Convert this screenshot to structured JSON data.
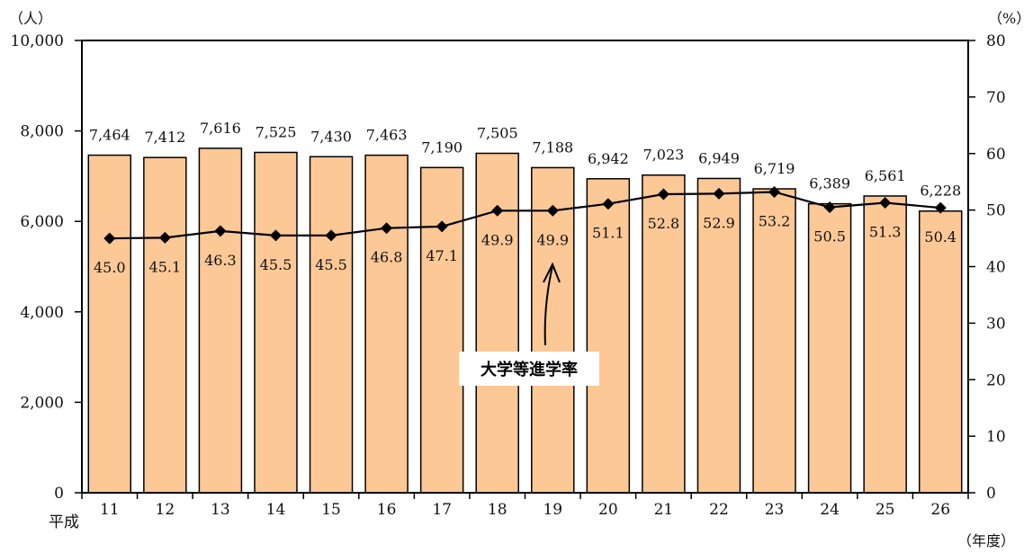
{
  "chart_data": {
    "type": "bar+line",
    "era_prefix": "平成",
    "categories": [
      "11",
      "12",
      "13",
      "14",
      "15",
      "16",
      "17",
      "18",
      "19",
      "20",
      "21",
      "22",
      "23",
      "24",
      "25",
      "26"
    ],
    "series": [
      {
        "type": "bar",
        "axis": "left",
        "values": [
          7464,
          7412,
          7616,
          7525,
          7430,
          7463,
          7190,
          7505,
          7188,
          6942,
          7023,
          6949,
          6719,
          6389,
          6561,
          6228
        ],
        "labels": [
          "7,464",
          "7,412",
          "7,616",
          "7,525",
          "7,430",
          "7,463",
          "7,190",
          "7,505",
          "7,188",
          "6,942",
          "7,023",
          "6,949",
          "6,719",
          "6,389",
          "6,561",
          "6,228"
        ],
        "color": "#FCC896"
      },
      {
        "type": "line",
        "axis": "right",
        "name": "大学等進学率",
        "values": [
          45.0,
          45.1,
          46.3,
          45.5,
          45.5,
          46.8,
          47.1,
          49.9,
          49.9,
          51.1,
          52.8,
          52.9,
          53.2,
          50.5,
          51.3,
          50.4
        ],
        "labels": [
          "45.0",
          "45.1",
          "46.3",
          "45.5",
          "45.5",
          "46.8",
          "47.1",
          "49.9",
          "49.9",
          "51.1",
          "52.8",
          "52.9",
          "53.2",
          "50.5",
          "51.3",
          "50.4"
        ],
        "color": "#000000"
      }
    ],
    "left_axis": {
      "unit": "（人）",
      "range": [
        0,
        10000
      ],
      "ticks": [
        0,
        2000,
        4000,
        6000,
        8000,
        10000
      ],
      "tick_labels": [
        "0",
        "2,000",
        "4,000",
        "6,000",
        "8,000",
        "10,000"
      ]
    },
    "right_axis": {
      "unit": "（%）",
      "range": [
        0,
        80
      ],
      "ticks": [
        0,
        10,
        20,
        30,
        40,
        50,
        60,
        70,
        80
      ],
      "tick_labels": [
        "0",
        "10",
        "20",
        "30",
        "40",
        "50",
        "60",
        "70",
        "80"
      ]
    },
    "x_unit": "（年度）",
    "grid": false,
    "annotation": {
      "text": "大学等進学率",
      "points_to_category": "19"
    }
  }
}
